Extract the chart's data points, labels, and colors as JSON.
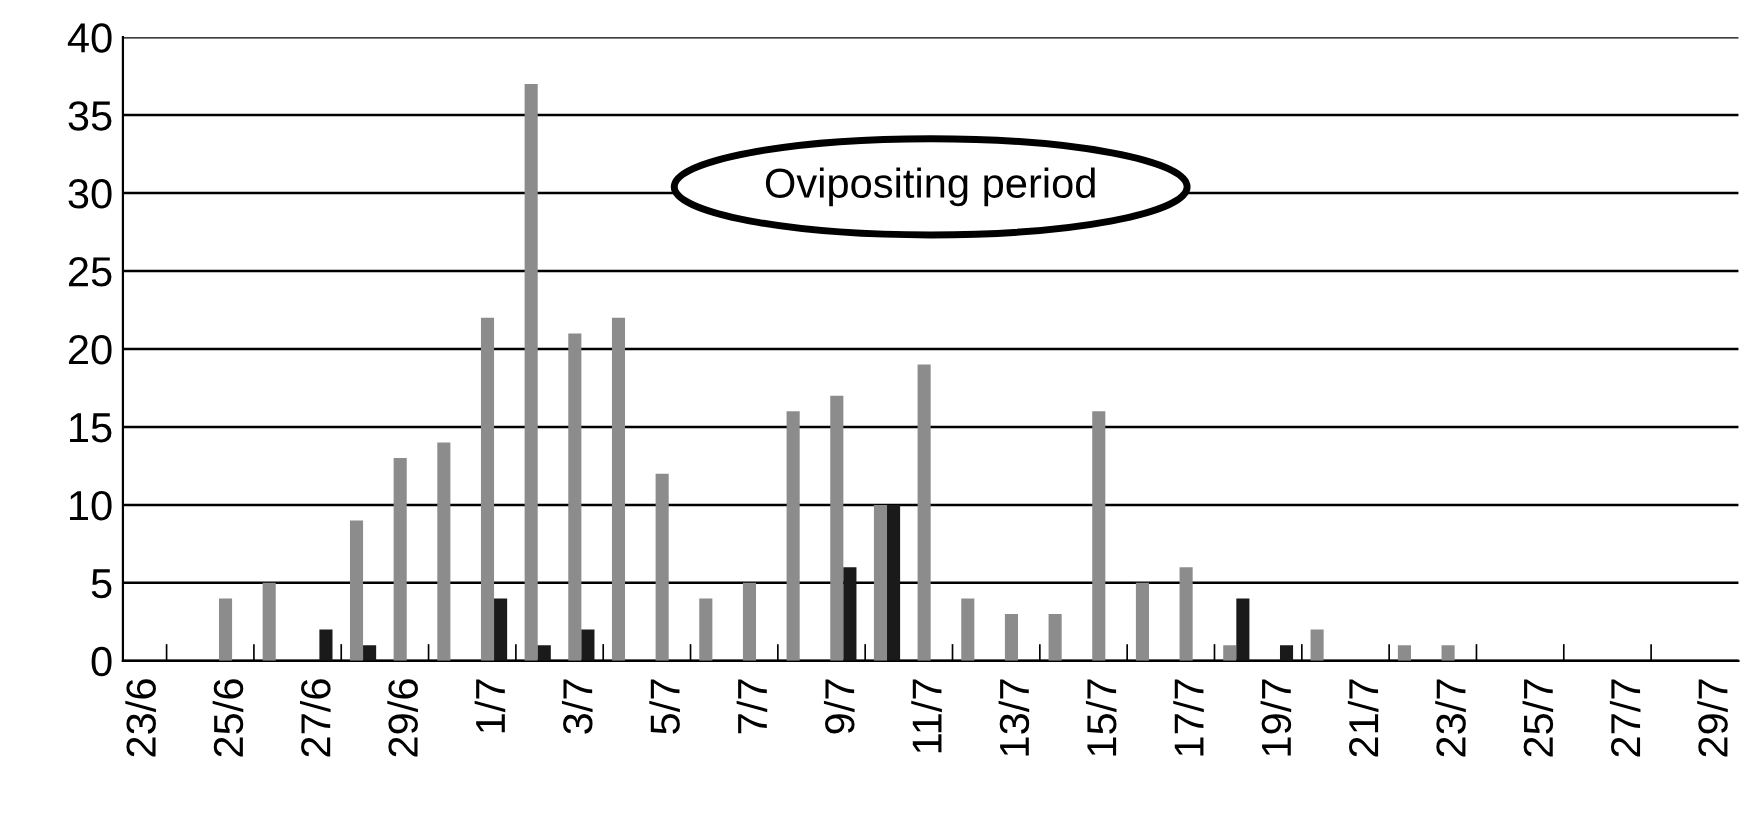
{
  "chart_data": {
    "type": "bar",
    "categories": [
      "23/6",
      null,
      "25/6",
      null,
      "27/6",
      null,
      "29/6",
      null,
      "1/7",
      null,
      "3/7",
      null,
      "5/7",
      null,
      "7/7",
      null,
      "9/7",
      null,
      "11/7",
      null,
      "13/7",
      null,
      "15/7",
      null,
      "17/7",
      null,
      "19/7",
      null,
      "21/7",
      null,
      "23/7",
      null,
      "25/7",
      null,
      "27/7",
      null,
      "29/7"
    ],
    "series": [
      {
        "color": "#8c8c8c",
        "values": [
          0,
          0,
          4,
          5,
          0,
          9,
          13,
          14,
          22,
          37,
          21,
          22,
          12,
          4,
          5,
          16,
          17,
          10,
          19,
          4,
          3,
          3,
          16,
          5,
          6,
          1,
          0,
          2,
          0,
          1,
          1,
          0,
          0,
          0,
          0,
          0,
          0
        ]
      },
      {
        "color": "#1a1a1a",
        "values": [
          0,
          0,
          0,
          0,
          2,
          1,
          0,
          0,
          4,
          1,
          2,
          0,
          0,
          0,
          0,
          0,
          6,
          10,
          0,
          0,
          0,
          0,
          0,
          0,
          0,
          4,
          1,
          0,
          0,
          0,
          0,
          0,
          0,
          0,
          0,
          0,
          0
        ]
      }
    ],
    "ylim": [
      0,
      40
    ],
    "yticks": [
      0,
      5,
      10,
      15,
      20,
      25,
      30,
      35,
      40
    ],
    "grid": "y",
    "annotations": [
      "Ovipositing period"
    ]
  }
}
